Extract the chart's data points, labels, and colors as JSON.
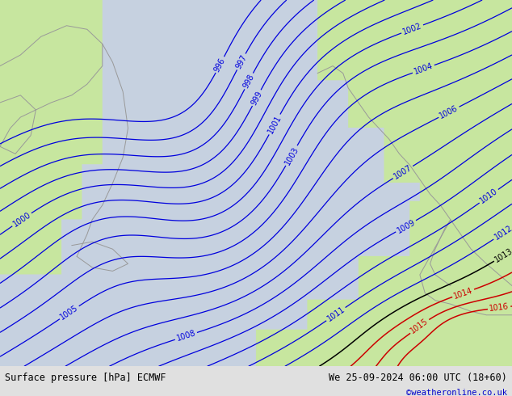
{
  "title_left": "Surface pressure [hPa] ECMWF",
  "title_right": "We 25-09-2024 06:00 UTC (18+60)",
  "title_right2": "©weatheronline.co.uk",
  "bg_color_sea": "#c8cfd8",
  "bg_color_land": "#c8e6a0",
  "contour_color_blue": "#0000dd",
  "contour_color_black": "#000000",
  "contour_color_red": "#cc0000",
  "bottom_bar_color": "#e0e0e0",
  "bottom_text_color": "#000000",
  "bottom_link_color": "#0000cc",
  "figsize": [
    6.34,
    4.9
  ],
  "dpi": 100,
  "pressure_levels_blue": [
    996,
    997,
    998,
    999,
    1000,
    1001,
    1002,
    1003,
    1004,
    1005,
    1006,
    1007,
    1008,
    1009,
    1010,
    1011,
    1012
  ],
  "pressure_levels_black": [
    1013
  ],
  "pressure_levels_red": [
    1014,
    1015,
    1016
  ]
}
